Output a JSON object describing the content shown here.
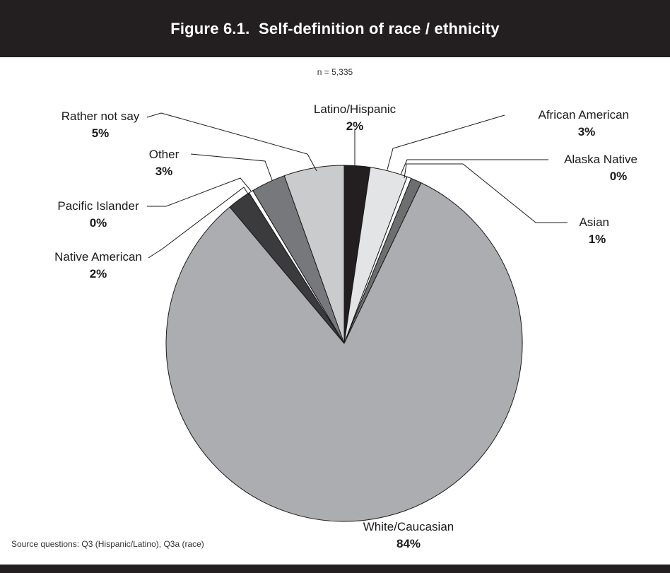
{
  "title": "Figure 6.1.  Self-definition of race / ethnicity",
  "subtitle": "n = 5,335",
  "source": "Source questions: Q3 (Hispanic/Latino), Q3a (race)",
  "chart_data": {
    "type": "pie",
    "title": "Figure 6.1.  Self-definition of race / ethnicity",
    "subtitle": "n = 5,335",
    "start": "12 o'clock, clockwise",
    "slices": [
      {
        "label": "Latino/Hispanic",
        "value": 2,
        "value_text": "2%",
        "color": "#231f20"
      },
      {
        "label": "African American",
        "value": 3,
        "value_text": "3%",
        "color": "#e3e4e5"
      },
      {
        "label": "Alaska Native",
        "value": 0,
        "value_text": "0%",
        "color": "#ffffff"
      },
      {
        "label": "Asian",
        "value": 1,
        "value_text": "1%",
        "color": "#6d6e70"
      },
      {
        "label": "White/Caucasian",
        "value": 84,
        "value_text": "84%",
        "color": "#acadb0"
      },
      {
        "label": "Native American",
        "value": 2,
        "value_text": "2%",
        "color": "#3b3a3c"
      },
      {
        "label": "Pacific Islander",
        "value": 0,
        "value_text": "0%",
        "color": "#ffffff"
      },
      {
        "label": "Other",
        "value": 3,
        "value_text": "3%",
        "color": "#77787b"
      },
      {
        "label": "Rather not say",
        "value": 5,
        "value_text": "5%",
        "color": "#cacbcd"
      }
    ]
  }
}
